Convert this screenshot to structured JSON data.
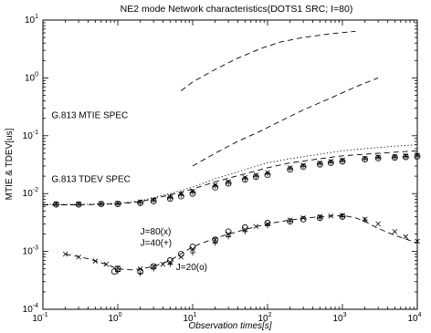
{
  "chart_data": {
    "type": "scatter",
    "title": "NE2 mode Network characteristics(DOTS1 SRC; I=80)",
    "xlabel": "Observation times[s]",
    "ylabel": "MTIE & TDEV[us]",
    "x_scale": "log",
    "y_scale": "log",
    "xlim": [
      0.1,
      10000
    ],
    "ylim": [
      0.0001,
      10
    ],
    "grid": false,
    "x_ticks": [
      {
        "base": "10",
        "exp": "-1",
        "value": 0.1
      },
      {
        "base": "10",
        "exp": "0",
        "value": 1
      },
      {
        "base": "10",
        "exp": "1",
        "value": 10
      },
      {
        "base": "10",
        "exp": "2",
        "value": 100
      },
      {
        "base": "10",
        "exp": "3",
        "value": 1000
      },
      {
        "base": "10",
        "exp": "4",
        "value": 10000
      }
    ],
    "y_ticks": [
      {
        "base": "10",
        "exp": "-4",
        "value": 0.0001
      },
      {
        "base": "10",
        "exp": "-3",
        "value": 0.001
      },
      {
        "base": "10",
        "exp": "-2",
        "value": 0.01
      },
      {
        "base": "10",
        "exp": "-1",
        "value": 0.1
      },
      {
        "base": "10",
        "exp": "0",
        "value": 1
      },
      {
        "base": "10",
        "exp": "1",
        "value": 10
      }
    ],
    "annotations": [
      {
        "text": "G.813 MTIE SPEC",
        "x": 0.13,
        "y": 0.2
      },
      {
        "text": "G.813 TDEV SPEC",
        "x": 0.13,
        "y": 0.016
      },
      {
        "text": "J=80(x)",
        "x": 2.0,
        "y": 0.00195
      },
      {
        "text": "J=40(+)",
        "x": 2.0,
        "y": 0.00125
      },
      {
        "text": "J=20(o)",
        "x": 6.0,
        "y": 0.00048
      }
    ],
    "series": [
      {
        "style": "dashed-line",
        "x": [
          7,
          10,
          20,
          40,
          80,
          150,
          300,
          700,
          1500
        ],
        "y": [
          0.6,
          0.85,
          1.4,
          2.2,
          3.2,
          4.2,
          5.0,
          5.8,
          6.4
        ]
      },
      {
        "style": "dashed-line",
        "x": [
          10,
          20,
          40,
          80,
          150,
          300,
          700,
          1500,
          3000
        ],
        "y": [
          0.03,
          0.05,
          0.08,
          0.12,
          0.18,
          0.28,
          0.45,
          0.7,
          1.0
        ]
      },
      {
        "style": "dotted-line",
        "x": [
          0.1,
          0.3,
          1,
          2,
          5,
          10,
          20,
          50,
          100,
          200,
          500,
          1000,
          2000,
          5000,
          10000
        ],
        "y": [
          0.0065,
          0.0065,
          0.0068,
          0.0075,
          0.01,
          0.013,
          0.018,
          0.026,
          0.034,
          0.04,
          0.048,
          0.055,
          0.06,
          0.066,
          0.07
        ]
      },
      {
        "style": "dashed-line",
        "x": [
          0.1,
          0.3,
          1,
          2,
          5,
          10,
          20,
          50,
          100,
          200,
          500,
          1000,
          2000,
          5000,
          10000
        ],
        "y": [
          0.0064,
          0.0064,
          0.0066,
          0.0072,
          0.0095,
          0.012,
          0.016,
          0.022,
          0.028,
          0.034,
          0.04,
          0.045,
          0.048,
          0.052,
          0.055
        ]
      },
      {
        "name": "J=80(x)",
        "marker": "x",
        "x": [
          0.15,
          0.3,
          0.6,
          1,
          2,
          3,
          5,
          7,
          10,
          20,
          30,
          50,
          70,
          100,
          200,
          300,
          500,
          700,
          1000,
          2000,
          3000,
          5000,
          7000,
          10000
        ],
        "y": [
          0.0066,
          0.0066,
          0.0067,
          0.0068,
          0.0072,
          0.0078,
          0.0088,
          0.0098,
          0.011,
          0.014,
          0.016,
          0.019,
          0.021,
          0.023,
          0.028,
          0.031,
          0.034,
          0.036,
          0.038,
          0.041,
          0.043,
          0.044,
          0.045,
          0.046
        ]
      },
      {
        "name": "J=40(+)",
        "marker": "+",
        "x": [
          0.15,
          0.3,
          0.6,
          1,
          2,
          3,
          5,
          7,
          10,
          20,
          30,
          50,
          70,
          100,
          200,
          300,
          500,
          700,
          1000,
          2000,
          3000,
          5000,
          7000,
          10000
        ],
        "y": [
          0.0065,
          0.0065,
          0.0066,
          0.0067,
          0.007,
          0.0076,
          0.0085,
          0.0095,
          0.0105,
          0.0135,
          0.0155,
          0.018,
          0.02,
          0.022,
          0.027,
          0.03,
          0.033,
          0.035,
          0.037,
          0.04,
          0.042,
          0.043,
          0.044,
          0.045
        ]
      },
      {
        "name": "J=20(o)",
        "marker": "o",
        "x": [
          0.15,
          0.3,
          0.6,
          1,
          2,
          3,
          5,
          7,
          10,
          20,
          30,
          50,
          70,
          100,
          200,
          300,
          500,
          700,
          1000,
          2000,
          3000,
          5000,
          7000,
          10000
        ],
        "y": [
          0.0065,
          0.0065,
          0.0066,
          0.0066,
          0.0069,
          0.0074,
          0.0082,
          0.009,
          0.01,
          0.0128,
          0.015,
          0.0175,
          0.0195,
          0.021,
          0.026,
          0.029,
          0.032,
          0.034,
          0.036,
          0.039,
          0.041,
          0.042,
          0.043,
          0.044
        ]
      },
      {
        "style": "dashed-line",
        "x": [
          0.2,
          0.4,
          0.7,
          1,
          1.5,
          2,
          3,
          5,
          10,
          20,
          50,
          100,
          200,
          500,
          1000,
          1500,
          2000,
          3000,
          5000,
          10000
        ],
        "y": [
          0.0009,
          0.00075,
          0.0006,
          0.0005,
          0.00048,
          0.0005,
          0.00055,
          0.0007,
          0.0012,
          0.0017,
          0.0024,
          0.003,
          0.0035,
          0.004,
          0.0042,
          0.0038,
          0.0033,
          0.0025,
          0.0019,
          0.0014
        ]
      },
      {
        "name": "J=80(x)",
        "marker": "x",
        "x": [
          0.2,
          0.3,
          0.5,
          0.7,
          1,
          2,
          3,
          4,
          5,
          7,
          10,
          20,
          30,
          50,
          70,
          100,
          200,
          300,
          500,
          700,
          1000,
          2000,
          3000,
          5000,
          7000,
          10000
        ],
        "y": [
          0.0009,
          0.0008,
          0.00068,
          0.0006,
          0.00052,
          0.0005,
          0.00055,
          0.0006,
          0.00065,
          0.0008,
          0.0011,
          0.0016,
          0.002,
          0.0024,
          0.0027,
          0.003,
          0.0035,
          0.0038,
          0.004,
          0.0041,
          0.0042,
          0.0036,
          0.003,
          0.0022,
          0.0018,
          0.0015
        ]
      },
      {
        "name": "J=40(+)",
        "marker": "+",
        "x": [
          1,
          2,
          3,
          5,
          10,
          20,
          30,
          50,
          100,
          200,
          500,
          1000,
          2000
        ],
        "y": [
          0.00045,
          0.00042,
          0.0005,
          0.0006,
          0.00095,
          0.0014,
          0.0018,
          0.0022,
          0.0028,
          0.0033,
          0.0038,
          0.004,
          0.0035
        ]
      },
      {
        "name": "J=20(o)",
        "marker": "o",
        "x": [
          0.9,
          1,
          2,
          3,
          5,
          7,
          10,
          20,
          30,
          50,
          100,
          200,
          300,
          500,
          1000
        ],
        "y": [
          0.00045,
          0.0005,
          0.00045,
          0.00055,
          0.0007,
          0.0009,
          0.0012,
          0.0016,
          0.0022,
          0.0026,
          0.0031,
          0.0033,
          0.0036,
          0.0038,
          0.004
        ]
      }
    ]
  }
}
